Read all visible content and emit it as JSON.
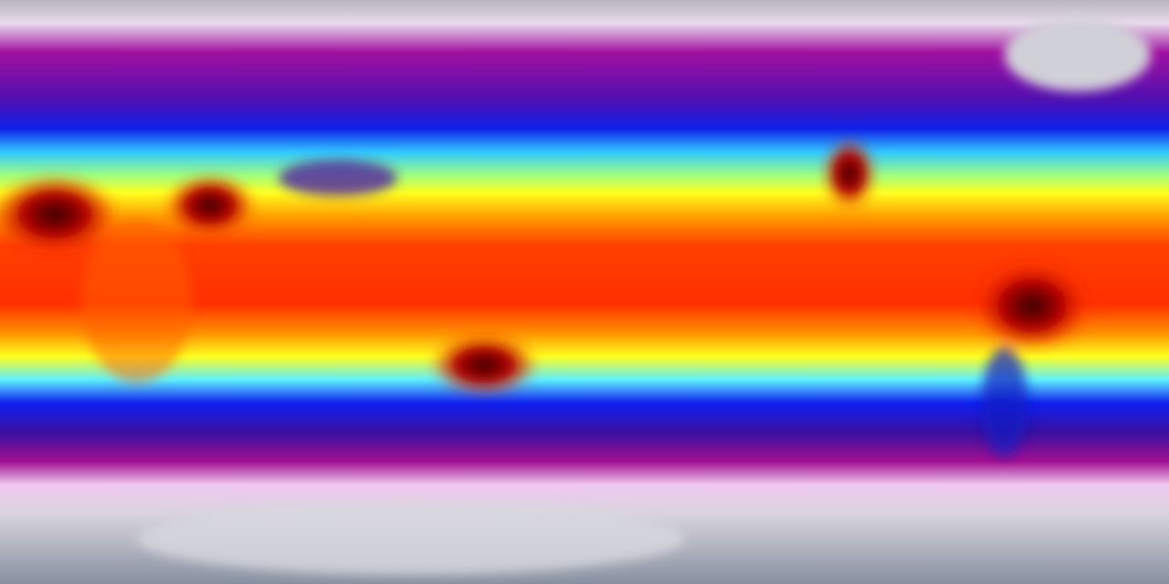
{
  "map": {
    "projection": "equirectangular",
    "colormap": [
      "#c8c4cc",
      "#f0e0f0",
      "#a0109a",
      "#2a10c0",
      "#0020ff",
      "#40e8ff",
      "#ffff20",
      "#ffb000",
      "#ff3000",
      "#c00000",
      "#300000"
    ],
    "colors": {
      "polar": "#b8b8c2",
      "cold": "#9a0c96",
      "cool": "#1a14d8",
      "mild": "#50f0ff",
      "warm": "#ffff30",
      "hot": "#ff4400",
      "hottest": "#3a0000"
    }
  }
}
